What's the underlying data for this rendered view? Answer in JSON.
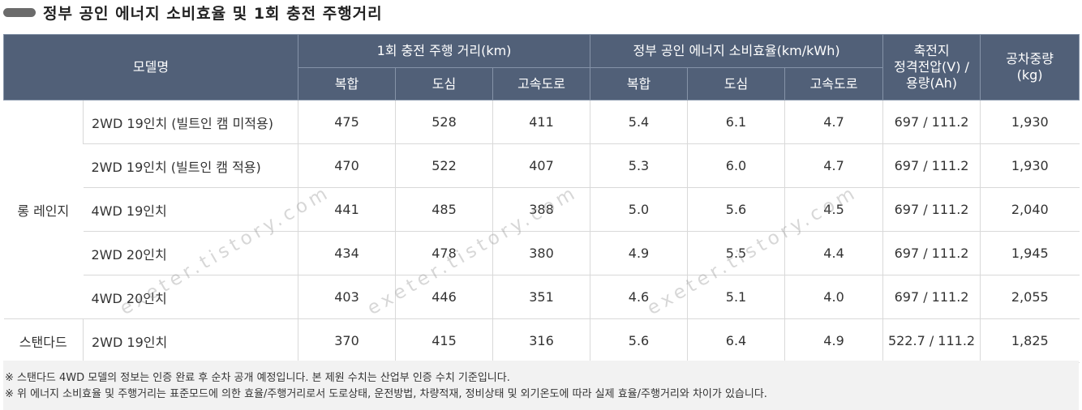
{
  "title": "정부 공인 에너지 소비효율 및 1회 충전 주행거리",
  "header": {
    "model": "모델명",
    "range_group": "1회 충전 주행 거리(km)",
    "eff_group": "정부 공인 에너지 소비효율(km/kWh)",
    "battery_line1": "축전지",
    "battery_line2": "정격전압(V) /",
    "battery_line3": "용량(Ah)",
    "weight_line1": "공차중량",
    "weight_line2": "(kg)",
    "sub": [
      "복합",
      "도심",
      "고속도로",
      "복합",
      "도심",
      "고속도로"
    ]
  },
  "groups": {
    "long_range": "롱 레인지",
    "standard": "스탠다드"
  },
  "rows": [
    {
      "model": "2WD 19인치 (빌트인 캠 미적용)",
      "range": [
        "475",
        "528",
        "411"
      ],
      "eff": [
        "5.4",
        "6.1",
        "4.7"
      ],
      "battery": "697 / 111.2",
      "weight": "1,930"
    },
    {
      "model": "2WD 19인치 (빌트인 캠 적용)",
      "range": [
        "470",
        "522",
        "407"
      ],
      "eff": [
        "5.3",
        "6.0",
        "4.7"
      ],
      "battery": "697 / 111.2",
      "weight": "1,930"
    },
    {
      "model": "4WD 19인치",
      "range": [
        "441",
        "485",
        "388"
      ],
      "eff": [
        "5.0",
        "5.6",
        "4.5"
      ],
      "battery": "697 / 111.2",
      "weight": "2,040"
    },
    {
      "model": "2WD 20인치",
      "range": [
        "434",
        "478",
        "380"
      ],
      "eff": [
        "4.9",
        "5.5",
        "4.4"
      ],
      "battery": "697 / 111.2",
      "weight": "1,945"
    },
    {
      "model": "4WD 20인치",
      "range": [
        "403",
        "446",
        "351"
      ],
      "eff": [
        "4.6",
        "5.1",
        "4.0"
      ],
      "battery": "697 / 111.2",
      "weight": "2,055"
    },
    {
      "model": "2WD 19인치",
      "range": [
        "370",
        "415",
        "316"
      ],
      "eff": [
        "5.6",
        "6.4",
        "4.9"
      ],
      "battery": "522.7 / 111.2",
      "weight": "1,825"
    }
  ],
  "notes": [
    "※ 스탠다드 4WD 모델의 정보는 인증 완료 후 순차 공개 예정입니다. 본 제원 수치는 산업부 인증 수치 기준입니다.",
    "※ 위 에너지 소비효율 및 주행거리는 표준모드에 의한 효율/주행거리로서 도로상태, 운전방법, 차량적재, 정비상태 및 외기온도에 따라 실제 효율/주행거리와 차이가 있습니다."
  ],
  "watermark": "exeter.tistory.com",
  "colors": {
    "header_bg": "#516078",
    "header_text": "#ffffff",
    "notes_bg": "#f2f2f2",
    "title_bar": "#6b6b6b"
  }
}
